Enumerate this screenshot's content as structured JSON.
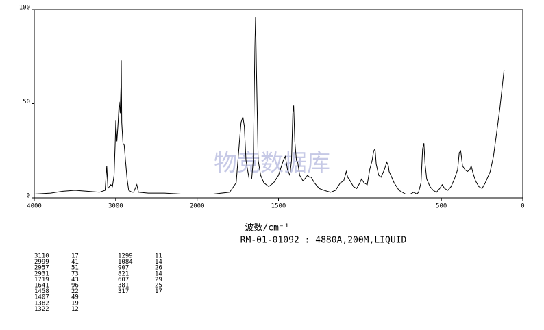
{
  "chart_data": {
    "type": "line",
    "title": "RM-01-01092 : 4880A,200M,LIQUID",
    "x_label": "波数/cm⁻¹",
    "watermark": "物竞数据库",
    "color": "#000000",
    "xlim": [
      4000,
      0
    ],
    "xbreak": 2000,
    "xticks": [
      4000,
      3000,
      2000,
      1500,
      500,
      0
    ],
    "ylim": [
      0,
      100
    ],
    "yticks": [
      0,
      50,
      100
    ],
    "x": [
      4000,
      3800,
      3650,
      3500,
      3350,
      3200,
      3130,
      3110,
      3095,
      3060,
      3040,
      3020,
      3005,
      2999,
      2985,
      2970,
      2957,
      2945,
      2935,
      2931,
      2925,
      2910,
      2895,
      2880,
      2860,
      2840,
      2800,
      2780,
      2740,
      2720,
      2600,
      2400,
      2200,
      2000,
      1900,
      1800,
      1760,
      1740,
      1730,
      1719,
      1710,
      1700,
      1690,
      1680,
      1665,
      1655,
      1645,
      1641,
      1636,
      1625,
      1610,
      1590,
      1560,
      1530,
      1500,
      1470,
      1458,
      1445,
      1430,
      1420,
      1412,
      1407,
      1400,
      1390,
      1382,
      1370,
      1350,
      1330,
      1322,
      1310,
      1299,
      1280,
      1250,
      1220,
      1180,
      1150,
      1120,
      1100,
      1090,
      1084,
      1075,
      1060,
      1040,
      1020,
      1000,
      990,
      975,
      955,
      940,
      925,
      915,
      907,
      900,
      885,
      870,
      850,
      835,
      825,
      821,
      810,
      790,
      760,
      720,
      690,
      670,
      650,
      640,
      625,
      615,
      607,
      600,
      590,
      570,
      550,
      530,
      510,
      495,
      480,
      460,
      440,
      420,
      400,
      390,
      381,
      370,
      355,
      340,
      325,
      317,
      305,
      290,
      270,
      250,
      230,
      200,
      180,
      160,
      140,
      125,
      115
    ],
    "y": [
      2,
      2.5,
      3.5,
      4,
      3.5,
      3,
      4,
      17,
      5,
      7,
      6,
      12,
      30,
      41,
      30,
      40,
      51,
      45,
      60,
      73,
      40,
      29,
      28,
      20,
      10,
      4,
      3,
      3,
      7,
      3,
      2.5,
      2.5,
      2,
      2,
      2,
      3,
      8,
      30,
      40,
      43,
      38,
      20,
      15,
      10,
      10,
      20,
      80,
      96,
      70,
      20,
      12,
      8,
      6,
      8,
      12,
      20,
      22,
      15,
      12,
      20,
      45,
      49,
      30,
      20,
      19,
      12,
      9,
      11,
      12,
      11,
      11,
      8,
      5,
      4,
      3,
      4,
      8,
      9,
      12,
      14,
      11,
      9,
      6,
      5,
      8,
      10,
      8,
      7,
      15,
      20,
      25,
      26,
      18,
      12,
      11,
      15,
      19,
      17,
      14,
      12,
      8,
      4,
      2,
      2,
      3,
      2,
      3,
      8,
      26,
      29,
      18,
      10,
      6,
      4,
      3,
      5,
      7,
      5,
      4,
      6,
      10,
      15,
      24,
      25,
      17,
      15,
      14,
      15,
      17,
      13,
      9,
      6,
      5,
      8,
      14,
      22,
      35,
      48,
      60,
      68
    ],
    "peak_table": [
      [
        3110,
        17
      ],
      [
        2999,
        41
      ],
      [
        2957,
        51
      ],
      [
        2931,
        73
      ],
      [
        1719,
        43
      ],
      [
        1641,
        96
      ],
      [
        1458,
        22
      ],
      [
        1407,
        49
      ],
      [
        1382,
        19
      ],
      [
        1322,
        12
      ],
      [
        1299,
        11
      ],
      [
        1084,
        14
      ],
      [
        907,
        26
      ],
      [
        821,
        14
      ],
      [
        607,
        29
      ],
      [
        381,
        25
      ],
      [
        317,
        17
      ]
    ]
  }
}
